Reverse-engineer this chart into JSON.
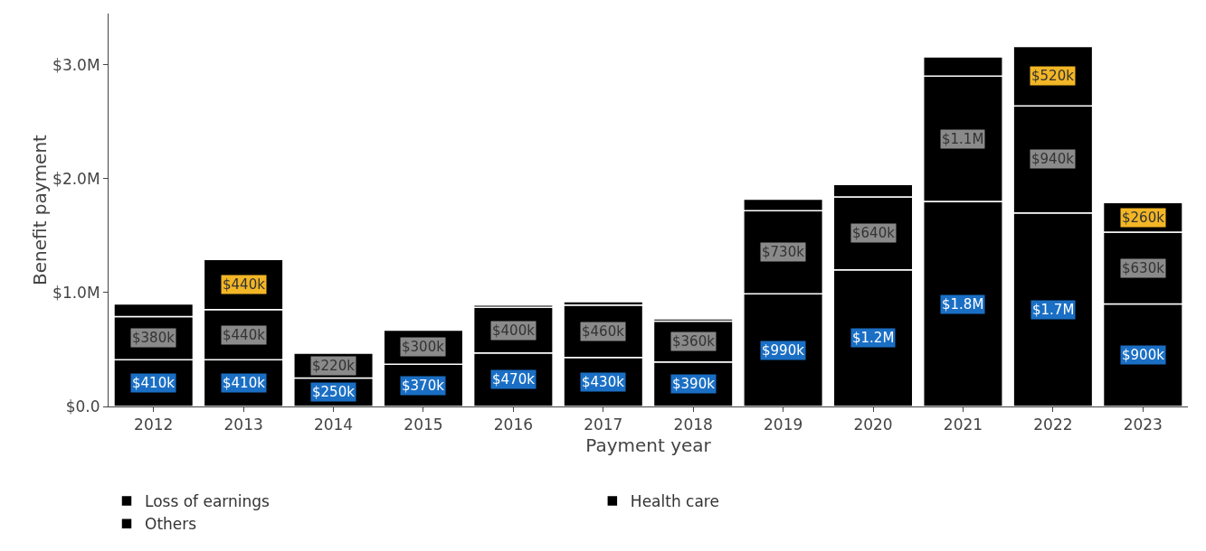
{
  "chart_data": {
    "type": "bar",
    "stacked": true,
    "xlabel": "Payment year",
    "ylabel": "Benefit payment",
    "categories": [
      "2012",
      "2013",
      "2014",
      "2015",
      "2016",
      "2017",
      "2018",
      "2019",
      "2020",
      "2021",
      "2022",
      "2023"
    ],
    "series": [
      {
        "name": "Loss of earnings",
        "color": "#000000",
        "values": [
          410000,
          410000,
          250000,
          370000,
          470000,
          430000,
          390000,
          990000,
          1200000,
          1800000,
          1700000,
          900000
        ],
        "value_labels": [
          "$410k",
          "$410k",
          "$250k",
          "$370k",
          "$470k",
          "$430k",
          "$390k",
          "$990k",
          "$1.2M",
          "$1.8M",
          "$1.7M",
          "$900k"
        ]
      },
      {
        "name": "Health care",
        "color": "#000000",
        "values": [
          380000,
          440000,
          220000,
          300000,
          400000,
          460000,
          360000,
          730000,
          640000,
          1100000,
          940000,
          630000
        ],
        "value_labels": [
          "$380k",
          "$440k",
          "$220k",
          "$300k",
          "$400k",
          "$460k",
          "$360k",
          "$730k",
          "$640k",
          "$1.1M",
          "$940k",
          "$630k"
        ]
      },
      {
        "name": "Others",
        "color": "#000000",
        "values": [
          110000,
          440000,
          10000,
          null,
          20000,
          30000,
          20000,
          100000,
          110000,
          170000,
          520000,
          260000
        ],
        "value_labels": [
          null,
          "$440k",
          null,
          null,
          null,
          null,
          null,
          null,
          null,
          null,
          "$520k",
          "$260k"
        ]
      }
    ],
    "ylim": [
      0,
      3450000
    ],
    "yticks": [
      {
        "value": 0,
        "label": "$0.0"
      },
      {
        "value": 1000000,
        "label": "$1.0M"
      },
      {
        "value": 2000000,
        "label": "$2.0M"
      },
      {
        "value": 3000000,
        "label": "$3.0M"
      }
    ],
    "grid": false,
    "legend": "bottom"
  }
}
